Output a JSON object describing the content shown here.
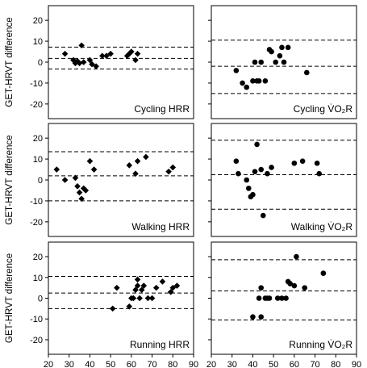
{
  "chart_data": {
    "type": "scatter",
    "ylabel": "GET-HRVT difference",
    "x_ticks": [
      20,
      30,
      40,
      50,
      60,
      70,
      80,
      90
    ],
    "y_ticks": [
      20,
      10,
      0,
      -10,
      -20
    ],
    "xlim": [
      20,
      90
    ],
    "ylim": [
      -27,
      27
    ],
    "panels": [
      {
        "label": "Cycling HRR",
        "marker": "diamond",
        "lines": [
          7.2,
          1.8,
          -3.3
        ],
        "points": [
          [
            28,
            4
          ],
          [
            32,
            1
          ],
          [
            33,
            -0.5
          ],
          [
            34,
            0.5
          ],
          [
            35,
            -0.5
          ],
          [
            36,
            8
          ],
          [
            37,
            0
          ],
          [
            40,
            1
          ],
          [
            41,
            -1
          ],
          [
            43,
            -2
          ],
          [
            46,
            3
          ],
          [
            48,
            3
          ],
          [
            50,
            4
          ],
          [
            58,
            3
          ],
          [
            59,
            4
          ],
          [
            60,
            5
          ],
          [
            62,
            1
          ],
          [
            63,
            4
          ]
        ]
      },
      {
        "label": "Cycling V̇O₂R",
        "marker": "circle",
        "lines": [
          10.5,
          -2,
          -15
        ],
        "points": [
          [
            32,
            -4
          ],
          [
            35,
            -10
          ],
          [
            37,
            -12
          ],
          [
            40,
            -9
          ],
          [
            41,
            0
          ],
          [
            42,
            -9
          ],
          [
            43,
            -9
          ],
          [
            44,
            0
          ],
          [
            46,
            -9
          ],
          [
            48,
            6
          ],
          [
            49,
            5
          ],
          [
            51,
            0
          ],
          [
            53,
            3
          ],
          [
            54,
            7
          ],
          [
            55,
            0
          ],
          [
            57,
            7
          ],
          [
            66,
            -5
          ]
        ]
      },
      {
        "label": "Walking HRR",
        "marker": "diamond",
        "lines": [
          13.5,
          2,
          -10
        ],
        "points": [
          [
            24,
            5
          ],
          [
            28,
            0
          ],
          [
            33,
            1
          ],
          [
            34,
            -3
          ],
          [
            35,
            -6
          ],
          [
            36,
            -9
          ],
          [
            37,
            -4
          ],
          [
            38,
            -5
          ],
          [
            40,
            9
          ],
          [
            42,
            5
          ],
          [
            59,
            7
          ],
          [
            62,
            3
          ],
          [
            63,
            9
          ],
          [
            67,
            11
          ],
          [
            78,
            4
          ],
          [
            80,
            6
          ]
        ]
      },
      {
        "label": "Walking V̇O₂R",
        "marker": "circle",
        "lines": [
          19,
          2.5,
          -14
        ],
        "points": [
          [
            32,
            9
          ],
          [
            33,
            3
          ],
          [
            37,
            0
          ],
          [
            38,
            -4
          ],
          [
            39,
            -8
          ],
          [
            40,
            -7
          ],
          [
            41,
            4
          ],
          [
            42,
            17
          ],
          [
            44,
            5
          ],
          [
            45,
            -17
          ],
          [
            47,
            3
          ],
          [
            49,
            6
          ],
          [
            60,
            8
          ],
          [
            64,
            9
          ],
          [
            71,
            8
          ],
          [
            72,
            3
          ]
        ]
      },
      {
        "label": "Running HRR",
        "marker": "diamond",
        "lines": [
          10.5,
          2.5,
          -5
        ],
        "points": [
          [
            51,
            -5
          ],
          [
            53,
            5
          ],
          [
            59,
            -4
          ],
          [
            60,
            0
          ],
          [
            61,
            0
          ],
          [
            62,
            4
          ],
          [
            63,
            6
          ],
          [
            63,
            9
          ],
          [
            64,
            0
          ],
          [
            65,
            4
          ],
          [
            66,
            6
          ],
          [
            68,
            0
          ],
          [
            70,
            0
          ],
          [
            72,
            5
          ],
          [
            75,
            8
          ],
          [
            79,
            3
          ],
          [
            80,
            5
          ],
          [
            82,
            6
          ]
        ]
      },
      {
        "label": "Running V̇O₂R",
        "marker": "circle",
        "lines": [
          18.5,
          3.5,
          -10.5
        ],
        "points": [
          [
            40,
            -9
          ],
          [
            43,
            0
          ],
          [
            44,
            5
          ],
          [
            44,
            -9
          ],
          [
            46,
            0
          ],
          [
            47,
            0
          ],
          [
            48,
            0
          ],
          [
            52,
            0
          ],
          [
            54,
            0
          ],
          [
            56,
            0
          ],
          [
            57,
            8
          ],
          [
            58,
            7
          ],
          [
            60,
            6
          ],
          [
            61,
            20
          ],
          [
            65,
            5
          ],
          [
            74,
            12
          ]
        ]
      }
    ]
  }
}
